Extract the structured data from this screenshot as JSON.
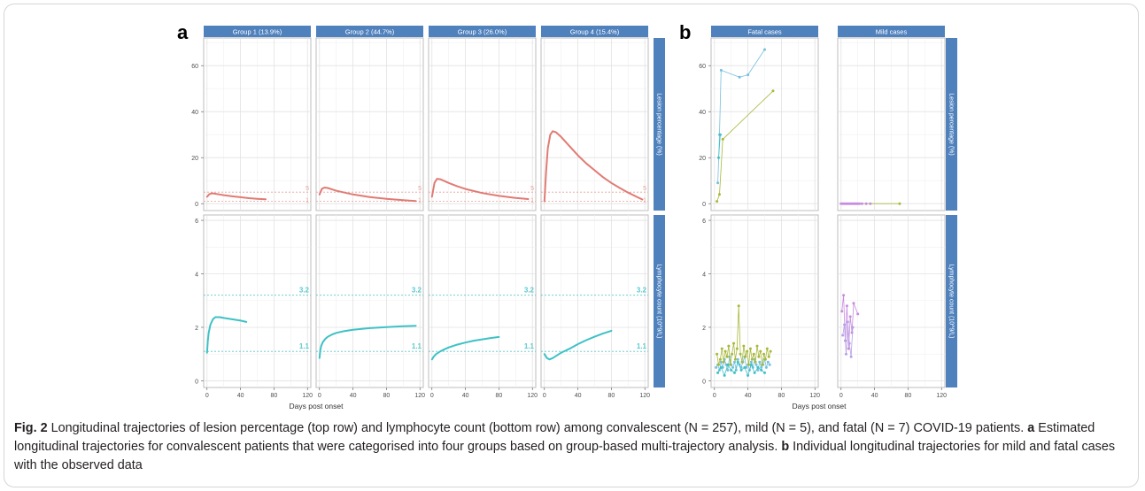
{
  "panels": [
    {
      "letter": "a",
      "columns": [
        "Group 1 (13.9%)",
        "Group 2 (44.7%)",
        "Group 3 (26.0%)",
        "Group 4 (15.4%)"
      ]
    },
    {
      "letter": "b",
      "columns": [
        "Fatal cases",
        "Mild cases"
      ]
    }
  ],
  "strip_labels": {
    "top": "Lesion percentage (%)",
    "bottom": "Lymphocyte count (10^9/L)"
  },
  "xlabel": "Days post onset",
  "x_ticks": [
    0,
    40,
    80,
    120
  ],
  "y_ticks_top": [
    0,
    20,
    40,
    60
  ],
  "y_ticks_bottom": [
    0,
    2,
    4,
    6
  ],
  "reference_lines": {
    "top": [
      {
        "value": 5,
        "label": "5"
      },
      {
        "value": 1,
        "label": "1"
      }
    ],
    "bottom": [
      {
        "value": 3.2,
        "label": "3.2"
      },
      {
        "value": 1.1,
        "label": "1.1"
      }
    ]
  },
  "colors": {
    "strip": "#4f81bd",
    "lesion_curve": "#e07b74",
    "lymph_curve": "#3ec1c6",
    "ref_line_top": "#e8a09a",
    "ref_line_bottom": "#5cc8cc",
    "fatal_blue": "#74c0de",
    "fatal_olive": "#a9b83a",
    "mild_purple": "#c78be0"
  },
  "chart_data": [
    {
      "type": "line",
      "panel": "a",
      "xlabel": "Days post onset",
      "xlim": [
        -4,
        124
      ],
      "facets": [
        {
          "column": "Group 1 (13.9%)",
          "row": "Lesion percentage (%)",
          "ylim": [
            -3,
            72
          ],
          "x": [
            0,
            3,
            6,
            10,
            15,
            20,
            30,
            40,
            50,
            60,
            70
          ],
          "y": [
            3.0,
            4.2,
            4.5,
            4.3,
            4.0,
            3.7,
            3.2,
            2.8,
            2.4,
            2.1,
            1.9
          ]
        },
        {
          "column": "Group 2 (44.7%)",
          "row": "Lesion percentage (%)",
          "ylim": [
            -3,
            72
          ],
          "x": [
            0,
            3,
            6,
            10,
            15,
            20,
            30,
            40,
            60,
            80,
            100,
            115
          ],
          "y": [
            4.0,
            6.5,
            7.0,
            6.8,
            6.2,
            5.6,
            4.8,
            4.0,
            2.9,
            2.1,
            1.5,
            1.1
          ]
        },
        {
          "column": "Group 3 (26.0%)",
          "row": "Lesion percentage (%)",
          "ylim": [
            -3,
            72
          ],
          "x": [
            0,
            3,
            6,
            10,
            15,
            20,
            30,
            40,
            60,
            80,
            100,
            115
          ],
          "y": [
            3.0,
            9.0,
            10.8,
            10.6,
            9.8,
            9.0,
            7.6,
            6.4,
            4.6,
            3.4,
            2.5,
            2.0
          ]
        },
        {
          "column": "Group 4 (15.4%)",
          "row": "Lesion percentage (%)",
          "ylim": [
            -3,
            72
          ],
          "x": [
            0,
            2,
            4,
            7,
            10,
            14,
            20,
            30,
            40,
            50,
            60,
            70,
            80,
            90,
            100,
            110,
            117
          ],
          "y": [
            1,
            14,
            24,
            30,
            31.5,
            31,
            29,
            25,
            21,
            17.5,
            14.5,
            11.5,
            9,
            6.8,
            4.8,
            3,
            1.8
          ]
        },
        {
          "column": "Group 1 (13.9%)",
          "row": "Lymphocyte count (10^9/L)",
          "ylim": [
            -0.25,
            6.2
          ],
          "x": [
            0,
            1,
            2,
            4,
            7,
            10,
            15,
            20,
            30,
            40,
            47
          ],
          "y": [
            1.05,
            1.5,
            1.8,
            2.1,
            2.3,
            2.38,
            2.38,
            2.35,
            2.3,
            2.25,
            2.2
          ]
        },
        {
          "column": "Group 2 (44.7%)",
          "row": "Lymphocyte count (10^9/L)",
          "ylim": [
            -0.25,
            6.2
          ],
          "x": [
            0,
            1,
            2,
            4,
            7,
            10,
            15,
            20,
            30,
            40,
            60,
            80,
            100,
            115
          ],
          "y": [
            0.85,
            1.15,
            1.3,
            1.45,
            1.57,
            1.65,
            1.73,
            1.79,
            1.86,
            1.91,
            1.97,
            2.01,
            2.04,
            2.06
          ]
        },
        {
          "column": "Group 3 (26.0%)",
          "row": "Lymphocyte count (10^9/L)",
          "ylim": [
            -0.25,
            6.2
          ],
          "x": [
            0,
            2,
            5,
            10,
            15,
            20,
            30,
            40,
            50,
            60,
            70,
            80
          ],
          "y": [
            0.8,
            0.9,
            1.0,
            1.1,
            1.18,
            1.25,
            1.35,
            1.43,
            1.5,
            1.55,
            1.6,
            1.64
          ]
        },
        {
          "column": "Group 4 (15.4%)",
          "row": "Lymphocyte count (10^9/L)",
          "ylim": [
            -0.25,
            6.2
          ],
          "x": [
            0,
            3,
            6,
            10,
            15,
            20,
            30,
            40,
            50,
            60,
            70,
            80
          ],
          "y": [
            1.0,
            0.85,
            0.8,
            0.85,
            0.95,
            1.05,
            1.2,
            1.37,
            1.52,
            1.65,
            1.77,
            1.87
          ]
        }
      ]
    },
    {
      "type": "scatter",
      "panel": "b",
      "xlabel": "Days post onset",
      "xlim": [
        -4,
        124
      ],
      "facets": [
        {
          "column": "Fatal cases",
          "row": "Lesion percentage (%)",
          "ylim": [
            -3,
            72
          ],
          "series": [
            {
              "x": [
                4,
                6,
                8,
                30,
                40,
                60
              ],
              "y": [
                9,
                30,
                58,
                55,
                56,
                67
              ]
            },
            {
              "x": [
                3,
                6,
                10,
                70
              ],
              "y": [
                1,
                4,
                28,
                49
              ]
            },
            {
              "x": [
                5,
                7
              ],
              "y": [
                20,
                30
              ]
            }
          ]
        },
        {
          "column": "Mild cases",
          "row": "Lesion percentage (%)",
          "ylim": [
            -3,
            72
          ],
          "series": [
            {
              "x": [
                0,
                2,
                4,
                6,
                8,
                10,
                12,
                14,
                16,
                18,
                20,
                22,
                25,
                30,
                35,
                70
              ],
              "y": [
                0,
                0,
                0,
                0,
                0,
                0,
                0,
                0,
                0,
                0,
                0,
                0,
                0,
                0,
                0,
                0
              ]
            }
          ]
        },
        {
          "column": "Fatal cases",
          "row": "Lymphocyte count (10^9/L)",
          "ylim": [
            -0.25,
            6.2
          ],
          "series": [
            {
              "x": [
                2,
                4,
                6,
                8,
                10,
                12,
                14,
                16,
                18,
                20,
                22,
                24,
                26,
                28,
                30,
                32,
                34,
                36,
                38,
                40,
                42,
                44,
                46,
                48,
                50,
                52,
                54,
                56,
                58,
                60,
                62,
                64,
                66
              ],
              "y": [
                0.5,
                0.6,
                0.4,
                0.7,
                0.5,
                0.8,
                0.6,
                0.4,
                0.9,
                0.6,
                0.5,
                0.7,
                0.4,
                0.8,
                0.6,
                0.5,
                0.7,
                0.9,
                0.5,
                0.6,
                0.4,
                0.7,
                0.5,
                0.8,
                0.6,
                0.4,
                0.7,
                0.5,
                0.6,
                0.8,
                0.5,
                0.7,
                0.6
              ]
            },
            {
              "x": [
                3,
                5,
                7,
                9,
                11,
                13,
                15,
                17,
                19,
                21,
                23,
                25,
                27,
                29,
                31,
                33,
                35,
                37,
                39,
                41,
                43,
                45,
                47,
                49,
                51,
                53,
                55,
                57,
                59,
                61,
                63,
                65,
                67
              ],
              "y": [
                1.0,
                0.6,
                0.8,
                1.2,
                0.7,
                1.1,
                0.9,
                1.3,
                0.6,
                1.0,
                1.4,
                0.8,
                1.2,
                2.8,
                1.0,
                0.7,
                1.3,
                0.9,
                1.1,
                0.6,
                1.2,
                0.8,
                1.0,
                0.7,
                1.3,
                0.9,
                1.1,
                0.6,
                1.0,
                0.8,
                1.2,
                0.9,
                1.1
              ]
            },
            {
              "x": [
                4,
                8,
                12,
                16,
                20,
                24,
                28,
                32,
                36,
                40,
                44,
                48,
                52,
                56,
                60
              ],
              "y": [
                0.3,
                0.5,
                0.2,
                0.6,
                0.4,
                0.3,
                0.7,
                0.4,
                0.5,
                0.2,
                0.6,
                0.3,
                0.5,
                0.4,
                0.3
              ]
            }
          ]
        },
        {
          "column": "Mild cases",
          "row": "Lymphocyte count (10^9/L)",
          "ylim": [
            -0.25,
            6.2
          ],
          "series": [
            {
              "x": [
                1,
                3,
                5,
                7,
                9,
                11,
                13,
                15,
                20
              ],
              "y": [
                2.6,
                3.2,
                1.5,
                2.8,
                1.2,
                2.4,
                1.8,
                2.9,
                2.5
              ]
            },
            {
              "x": [
                2,
                4,
                6,
                8,
                10,
                12,
                14
              ],
              "y": [
                1.7,
                2.1,
                1.0,
                2.2,
                1.4,
                0.9,
                2.0
              ]
            }
          ]
        }
      ]
    }
  ],
  "caption": {
    "fig_label": "Fig. 2",
    "main": "  Longitudinal trajectories of lesion percentage (top row) and lymphocyte count (bottom row) among convalescent (N = 257), mild (N = 5), and fatal (N = 7) COVID-19 patients. ",
    "a_label": "a",
    "a_text": " Estimated longitudinal trajectories for convalescent patients that were categorised into four groups based on group-based multi-trajectory analysis. ",
    "b_label": "b",
    "b_text": " Individual longitudinal trajectories for mild and fatal cases with the observed data"
  }
}
